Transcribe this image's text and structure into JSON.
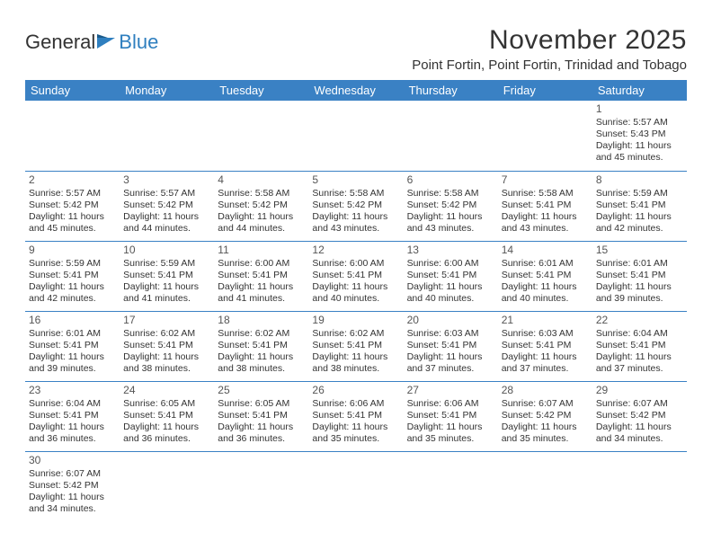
{
  "logo": {
    "text1": "General",
    "text2": "Blue",
    "flag_color": "#2f7fbf"
  },
  "title": "November 2025",
  "location": "Point Fortin, Point Fortin, Trinidad and Tobago",
  "colors": {
    "header_bg": "#3a81c4",
    "header_text": "#ffffff",
    "border": "#3a81c4",
    "text": "#333333",
    "background": "#ffffff"
  },
  "weekdays": [
    "Sunday",
    "Monday",
    "Tuesday",
    "Wednesday",
    "Thursday",
    "Friday",
    "Saturday"
  ],
  "first_weekday_index": 6,
  "days": [
    {
      "n": 1,
      "sr": "5:57 AM",
      "ss": "5:43 PM",
      "dl": "11 hours and 45 minutes."
    },
    {
      "n": 2,
      "sr": "5:57 AM",
      "ss": "5:42 PM",
      "dl": "11 hours and 45 minutes."
    },
    {
      "n": 3,
      "sr": "5:57 AM",
      "ss": "5:42 PM",
      "dl": "11 hours and 44 minutes."
    },
    {
      "n": 4,
      "sr": "5:58 AM",
      "ss": "5:42 PM",
      "dl": "11 hours and 44 minutes."
    },
    {
      "n": 5,
      "sr": "5:58 AM",
      "ss": "5:42 PM",
      "dl": "11 hours and 43 minutes."
    },
    {
      "n": 6,
      "sr": "5:58 AM",
      "ss": "5:42 PM",
      "dl": "11 hours and 43 minutes."
    },
    {
      "n": 7,
      "sr": "5:58 AM",
      "ss": "5:41 PM",
      "dl": "11 hours and 43 minutes."
    },
    {
      "n": 8,
      "sr": "5:59 AM",
      "ss": "5:41 PM",
      "dl": "11 hours and 42 minutes."
    },
    {
      "n": 9,
      "sr": "5:59 AM",
      "ss": "5:41 PM",
      "dl": "11 hours and 42 minutes."
    },
    {
      "n": 10,
      "sr": "5:59 AM",
      "ss": "5:41 PM",
      "dl": "11 hours and 41 minutes."
    },
    {
      "n": 11,
      "sr": "6:00 AM",
      "ss": "5:41 PM",
      "dl": "11 hours and 41 minutes."
    },
    {
      "n": 12,
      "sr": "6:00 AM",
      "ss": "5:41 PM",
      "dl": "11 hours and 40 minutes."
    },
    {
      "n": 13,
      "sr": "6:00 AM",
      "ss": "5:41 PM",
      "dl": "11 hours and 40 minutes."
    },
    {
      "n": 14,
      "sr": "6:01 AM",
      "ss": "5:41 PM",
      "dl": "11 hours and 40 minutes."
    },
    {
      "n": 15,
      "sr": "6:01 AM",
      "ss": "5:41 PM",
      "dl": "11 hours and 39 minutes."
    },
    {
      "n": 16,
      "sr": "6:01 AM",
      "ss": "5:41 PM",
      "dl": "11 hours and 39 minutes."
    },
    {
      "n": 17,
      "sr": "6:02 AM",
      "ss": "5:41 PM",
      "dl": "11 hours and 38 minutes."
    },
    {
      "n": 18,
      "sr": "6:02 AM",
      "ss": "5:41 PM",
      "dl": "11 hours and 38 minutes."
    },
    {
      "n": 19,
      "sr": "6:02 AM",
      "ss": "5:41 PM",
      "dl": "11 hours and 38 minutes."
    },
    {
      "n": 20,
      "sr": "6:03 AM",
      "ss": "5:41 PM",
      "dl": "11 hours and 37 minutes."
    },
    {
      "n": 21,
      "sr": "6:03 AM",
      "ss": "5:41 PM",
      "dl": "11 hours and 37 minutes."
    },
    {
      "n": 22,
      "sr": "6:04 AM",
      "ss": "5:41 PM",
      "dl": "11 hours and 37 minutes."
    },
    {
      "n": 23,
      "sr": "6:04 AM",
      "ss": "5:41 PM",
      "dl": "11 hours and 36 minutes."
    },
    {
      "n": 24,
      "sr": "6:05 AM",
      "ss": "5:41 PM",
      "dl": "11 hours and 36 minutes."
    },
    {
      "n": 25,
      "sr": "6:05 AM",
      "ss": "5:41 PM",
      "dl": "11 hours and 36 minutes."
    },
    {
      "n": 26,
      "sr": "6:06 AM",
      "ss": "5:41 PM",
      "dl": "11 hours and 35 minutes."
    },
    {
      "n": 27,
      "sr": "6:06 AM",
      "ss": "5:41 PM",
      "dl": "11 hours and 35 minutes."
    },
    {
      "n": 28,
      "sr": "6:07 AM",
      "ss": "5:42 PM",
      "dl": "11 hours and 35 minutes."
    },
    {
      "n": 29,
      "sr": "6:07 AM",
      "ss": "5:42 PM",
      "dl": "11 hours and 34 minutes."
    },
    {
      "n": 30,
      "sr": "6:07 AM",
      "ss": "5:42 PM",
      "dl": "11 hours and 34 minutes."
    }
  ],
  "labels": {
    "sunrise": "Sunrise:",
    "sunset": "Sunset:",
    "daylight": "Daylight:"
  }
}
